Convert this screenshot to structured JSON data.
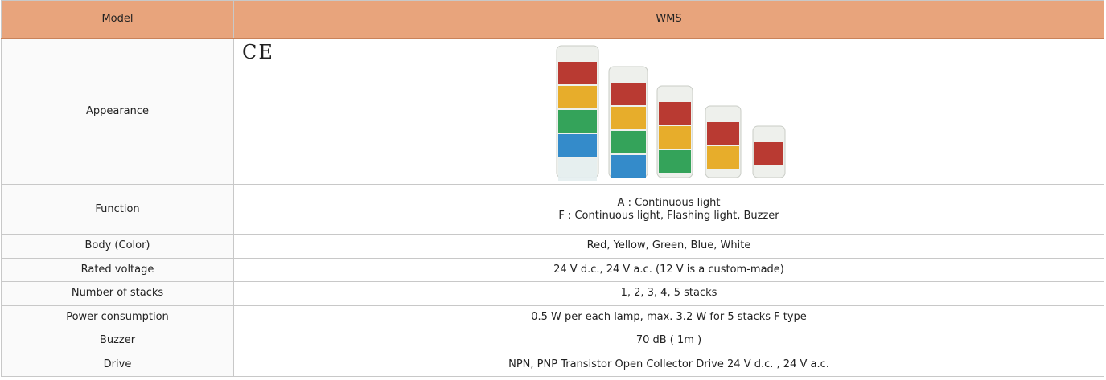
{
  "header": {
    "label": "Model",
    "value": "WMS"
  },
  "appearance": {
    "label": "Appearance",
    "mark": "CE"
  },
  "rows": [
    {
      "label": "Function",
      "value": [
        "A : Continuous light",
        "F : Continuous light, Flashing light, Buzzer"
      ]
    },
    {
      "label": "Body (Color)",
      "value": [
        "Red, Yellow, Green, Blue, White"
      ]
    },
    {
      "label": "Rated voltage",
      "value": [
        "24 V d.c., 24 V a.c. (12 V is a custom-made)"
      ]
    },
    {
      "label": "Number of stacks",
      "value": [
        "1, 2, 3, 4, 5  stacks"
      ]
    },
    {
      "label": "Power consumption",
      "value": [
        "0.5 W per each lamp, max. 3.2 W for 5 stacks F type"
      ]
    },
    {
      "label": "Buzzer",
      "value": [
        "70 dB ( 1m )"
      ]
    },
    {
      "label": "Drive",
      "value": [
        "NPN, PNP Transistor Open Collector Drive 24 V d.c. , 24 V a.c."
      ]
    }
  ]
}
